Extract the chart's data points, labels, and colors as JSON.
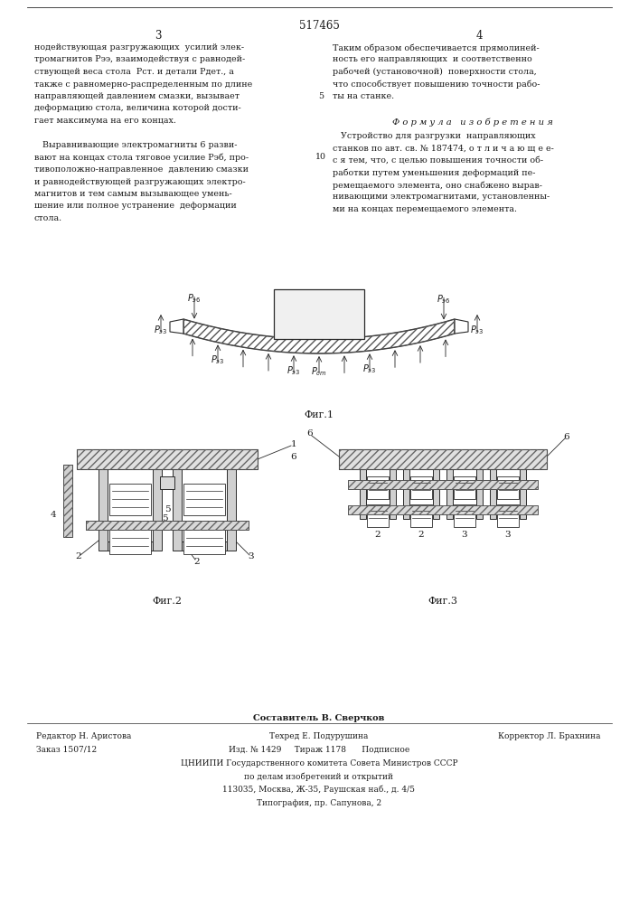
{
  "page_width": 7.07,
  "page_height": 10.0,
  "bg_color": "#ffffff",
  "patent_number": "517465",
  "page_num_left": "3",
  "page_num_right": "4",
  "col_left_text": [
    "нодействующая разгружающих  усилий элек-",
    "тромагнитов Рээ, взаимодействуя с равнодей-",
    "ствующей веса стола  Рст. и детали Рдет., а",
    "также с равномерно-распределенным по длине",
    "направляющей давлением смазки, вызывает",
    "деформацию стола, величина которой дости-",
    "гает максимума на его концах.",
    "",
    "   Выравнивающие электромагниты 6 разви-",
    "вают на концах стола тяговое усилие Рэб, про-",
    "тивоположно-направленное  давлению смазки",
    "и равнодействующей разгружающих электро-",
    "магнитов и тем самым вызывающее умень-",
    "шение или полное устранение  деформации",
    "стола."
  ],
  "col_right_text_top": [
    "Таким образом обеспечивается прямолиней-",
    "ность его направляющих  и соответственно",
    "рабочей (установочной)  поверхности стола,",
    "что способствует повышению точности рабо-",
    "ты на станке."
  ],
  "formula_header": "Ф о р м у л а   и з о б р е т е н и я",
  "formula_text": [
    "   Устройство для разгрузки  направляющих",
    "станков по авт. св. № 187474, о т л и ч а ю щ е е-",
    "с я тем, что, с целью повышения точности об-",
    "работки путем уменьшения деформаций пе-",
    "ремещаемого элемента, оно снабжено вырав-",
    "нивающими электромагнитами, установленны-",
    "ми на концах перемещаемого элемента."
  ],
  "footer_editor": "Редактор Н. Аристова",
  "footer_techred": "Техред Е. Подурушина",
  "footer_corrector": "Корректор Л. Брахнина",
  "footer_order": "Заказ 1507/12",
  "footer_composer_bold": "Составитель В. Сверчков",
  "footer_izdanie": "Изд. № 1429     Тираж 1178      Подписное",
  "footer_org": "ЦНИИПИ Государственного комитета Совета Министров СССР",
  "footer_affairs": "по делам изобретений и открытий",
  "footer_address": "113035, Москва, Ж-35, Раушская наб., д. 4/5",
  "footer_typography": "Типография, пр. Сапунова, 2",
  "text_color": "#1a1a1a",
  "line_color": "#2a2a2a"
}
